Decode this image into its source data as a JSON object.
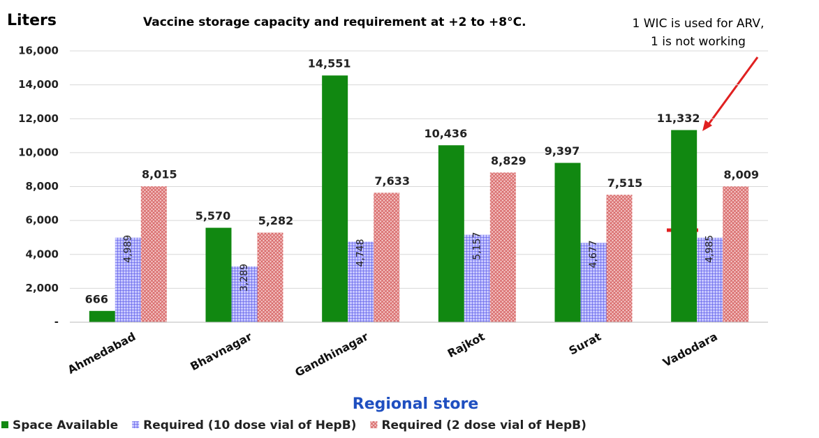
{
  "chart_data": {
    "type": "bar",
    "title": "Vaccine storage capacity and requirement at +2 to +8°C.",
    "y_label": "Liters",
    "x_label": "Regional store",
    "annotation": [
      "1 WIC is used for ARV,",
      "1 is not working"
    ],
    "categories": [
      "Ahmedabad",
      "Bhavnagar",
      "Gandhinagar",
      "Rajkot",
      "Surat",
      "Vadodara"
    ],
    "series": [
      {
        "name": "Space Available",
        "color": "#118811",
        "values": [
          666,
          5570,
          14551,
          10436,
          9397,
          11332
        ],
        "value_labels": [
          "666",
          "5,570",
          "14,551",
          "10,436",
          "9,397",
          "11,332"
        ]
      },
      {
        "name": "Required (10 dose vial of HepB)",
        "color": "#6f6ff0",
        "values": [
          4989,
          3289,
          4748,
          5157,
          4677,
          4985
        ],
        "value_labels": [
          "4,989",
          "3,289",
          "4,748",
          "5,157",
          "4,677",
          "4,985"
        ]
      },
      {
        "name": "Required (2 dose vial of HepB)",
        "color": "#e07c7c",
        "values": [
          8015,
          5282,
          7633,
          8829,
          7515,
          8009
        ],
        "value_labels": [
          "8,015",
          "5,282",
          "7,633",
          "8,829",
          "7,515",
          "8,009"
        ]
      }
    ],
    "ylim": [
      0,
      16000
    ],
    "yticks": [
      {
        "value": 0,
        "label": "-"
      },
      {
        "value": 2000,
        "label": "2,000"
      },
      {
        "value": 4000,
        "label": "4,000"
      },
      {
        "value": 6000,
        "label": "6,000"
      },
      {
        "value": 8000,
        "label": "8,000"
      },
      {
        "value": 10000,
        "label": "10,000"
      },
      {
        "value": 12000,
        "label": "12,000"
      },
      {
        "value": 14000,
        "label": "14,000"
      },
      {
        "value": 16000,
        "label": "16,000"
      }
    ],
    "grid": true,
    "legend": "bottom"
  }
}
